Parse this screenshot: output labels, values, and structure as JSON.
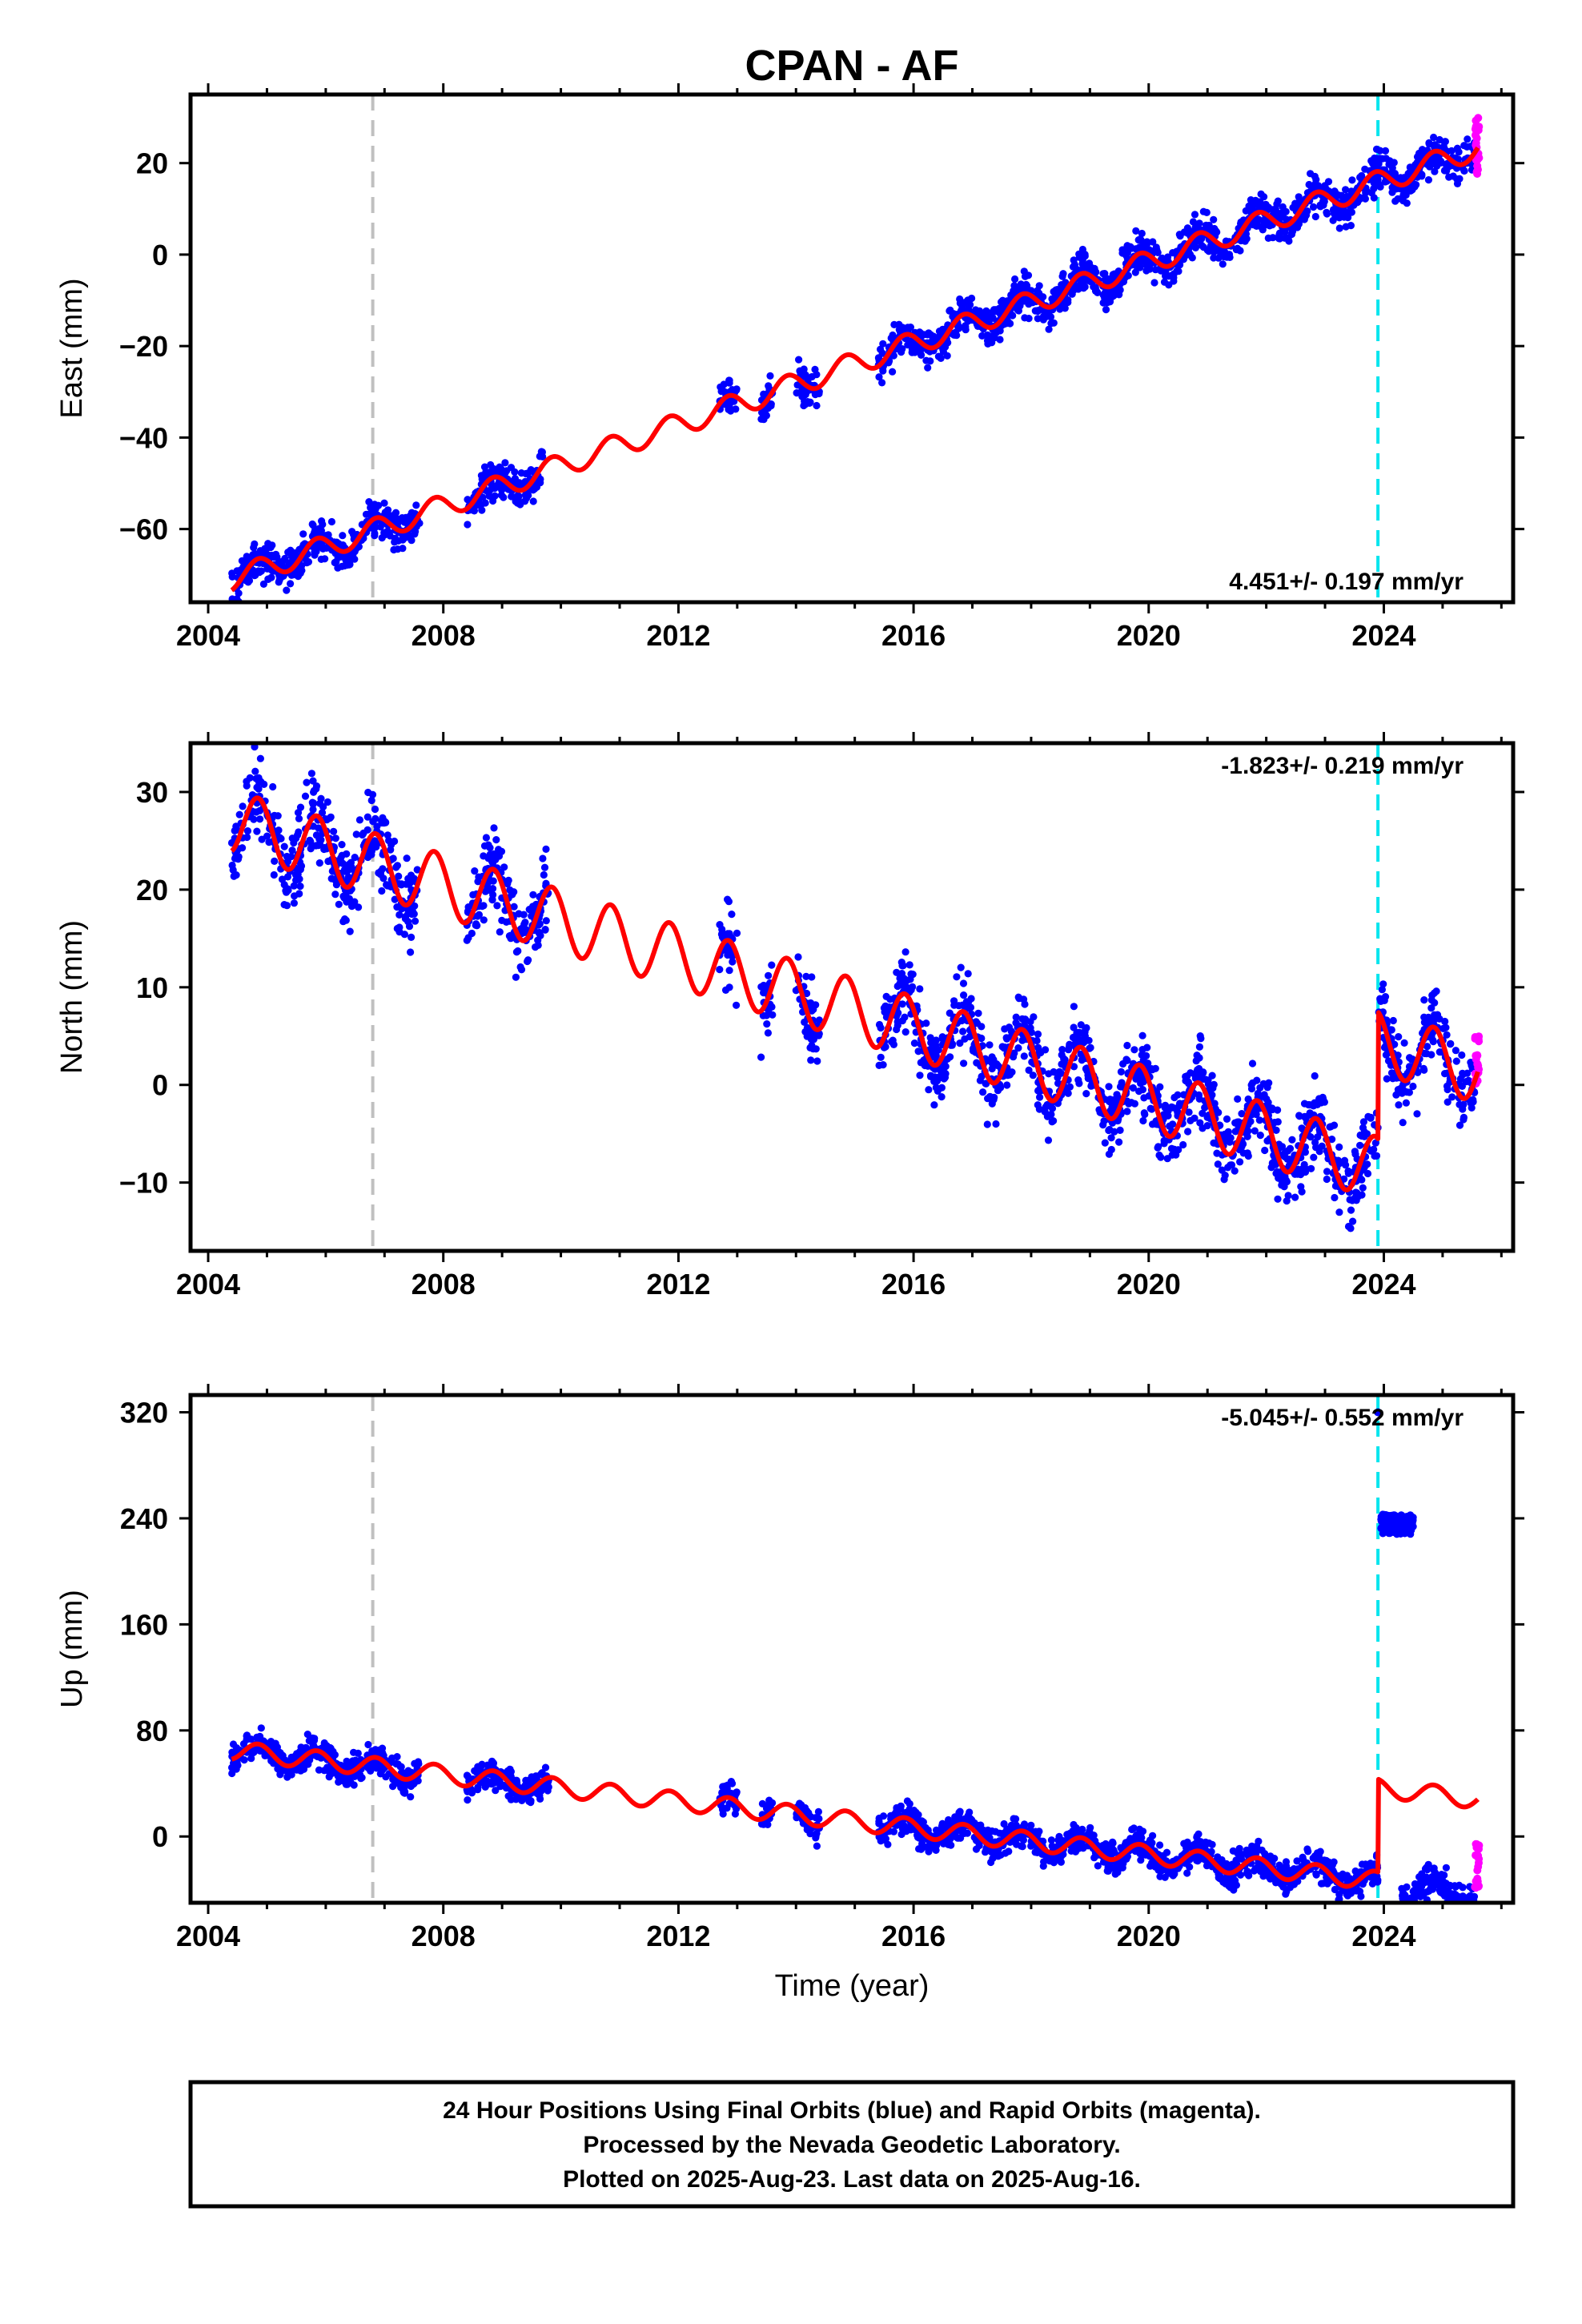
{
  "title": "CPAN - AF",
  "colors": {
    "final_orbits": "#0000ff",
    "rapid_orbits": "#ff00ff",
    "model": "#ff0000",
    "antenna_change": "#c0c0c0",
    "event": "#00e5ee"
  },
  "chart_data": [
    {
      "type": "scatter",
      "component": "east",
      "ylabel": "East (mm)",
      "xlabel": "",
      "xlim": [
        2003.7,
        2026.2
      ],
      "ylim": [
        -76,
        35
      ],
      "xticks": [
        "2004",
        "2008",
        "2012",
        "2016",
        "2020",
        "2024"
      ],
      "yticks": [
        -60,
        -40,
        -20,
        0,
        20
      ],
      "yticklabels": [
        "−60",
        "−40",
        "−20",
        "0",
        "20"
      ],
      "rate": "4.451+/- 0.197 mm/yr",
      "rate_position": "bottom-right",
      "vertical_lines": [
        2006.8,
        2023.9
      ],
      "data_segments": [
        [
          2004.4,
          2007.0
        ],
        [
          2007.0,
          2007.6
        ],
        [
          2008.4,
          2009.7
        ],
        [
          2012.7,
          2013.0
        ],
        [
          2013.4,
          2013.6
        ],
        [
          2014.0,
          2014.4
        ],
        [
          2015.4,
          2025.55
        ]
      ],
      "model": {
        "start_value": -71,
        "rate": 4.451,
        "annual_amplitude": 2.5,
        "offsets": []
      },
      "scatter_noise": 2.6,
      "rapid_orbits": {
        "x": [
          2025.55,
          2025.62
        ],
        "ylim": [
          17,
          30
        ]
      }
    },
    {
      "type": "scatter",
      "component": "north",
      "ylabel": "North (mm)",
      "xlabel": "",
      "xlim": [
        2003.7,
        2026.2
      ],
      "ylim": [
        -17,
        35
      ],
      "xticks": [
        "2004",
        "2008",
        "2012",
        "2016",
        "2020",
        "2024"
      ],
      "yticks": [
        -10,
        0,
        10,
        20,
        30
      ],
      "yticklabels": [
        "−10",
        "0",
        "10",
        "20",
        "30"
      ],
      "rate": "-1.823+/- 0.219 mm/yr",
      "rate_position": "top-right",
      "vertical_lines": [
        2006.8,
        2023.9
      ],
      "data_segments": [
        [
          2004.4,
          2007.0
        ],
        [
          2007.0,
          2007.6
        ],
        [
          2008.4,
          2009.8
        ],
        [
          2012.7,
          2013.0
        ],
        [
          2013.4,
          2013.6
        ],
        [
          2014.0,
          2014.4
        ],
        [
          2015.4,
          2025.55
        ]
      ],
      "model": {
        "start_value": 27,
        "rate": -1.823,
        "annual_amplitude": 3.2,
        "offsets": [
          {
            "x": 2023.9,
            "jump": 13
          }
        ]
      },
      "scatter_noise": 2.4,
      "rapid_orbits": {
        "x": [
          2025.55,
          2025.62
        ],
        "ylim": [
          0,
          5
        ]
      }
    },
    {
      "type": "scatter",
      "component": "up",
      "ylabel": "Up (mm)",
      "xlabel": "Time (year)",
      "xlim": [
        2003.7,
        2026.2
      ],
      "ylim": [
        -50,
        333
      ],
      "xticks": [
        "2004",
        "2008",
        "2012",
        "2016",
        "2020",
        "2024"
      ],
      "yticks": [
        0,
        80,
        160,
        240,
        320
      ],
      "yticklabels": [
        "0",
        "80",
        "160",
        "240",
        "320"
      ],
      "rate": "-5.045+/- 0.552 mm/yr",
      "rate_position": "top-right",
      "vertical_lines": [
        2006.8,
        2023.9
      ],
      "data_segments": [
        [
          2004.4,
          2007.0
        ],
        [
          2007.0,
          2007.6
        ],
        [
          2008.4,
          2009.8
        ],
        [
          2012.7,
          2013.0
        ],
        [
          2013.4,
          2013.6
        ],
        [
          2014.0,
          2014.4
        ],
        [
          2015.4,
          2023.9
        ],
        [
          2024.3,
          2025.55
        ]
      ],
      "model": {
        "start_value": 65,
        "rate": -5.045,
        "annual_amplitude": 7,
        "offsets": [
          {
            "x": 2023.9,
            "jump": 70
          }
        ]
      },
      "scatter_noise": 7,
      "data_offset_after": {
        "x": 2023.9,
        "value": -2
      },
      "outlier_cluster": {
        "x": [
          2023.95,
          2024.5
        ],
        "y": [
          228,
          243
        ]
      },
      "rapid_orbits": {
        "x": [
          2025.55,
          2025.62
        ],
        "ylim": [
          -40,
          -5
        ]
      }
    }
  ],
  "caption": [
    "24 Hour Positions Using Final Orbits (blue) and Rapid Orbits (magenta).",
    "Processed by the Nevada Geodetic Laboratory.",
    "Plotted on 2025-Aug-23. Last data on 2025-Aug-16."
  ]
}
